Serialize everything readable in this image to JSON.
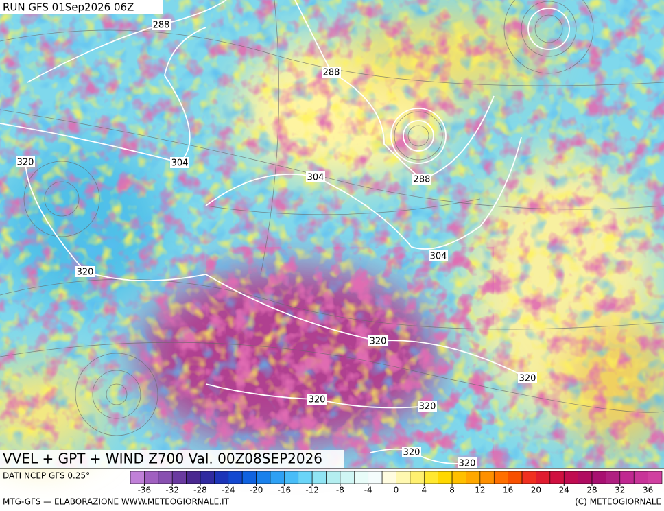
{
  "header": {
    "run": "RUN GFS 01Sep2026 06Z"
  },
  "map": {
    "title": "VVEL + GPT + WIND Z700 Val. 00Z08SEP2026",
    "contour_labels": [
      "288",
      "288",
      "288",
      "304",
      "304",
      "304",
      "320",
      "320",
      "320",
      "320",
      "320",
      "320",
      "320",
      "320"
    ]
  },
  "legend": {
    "source": "DATI NCEP GFS 0.25°",
    "colors": [
      "#c080d8",
      "#a060c0",
      "#8850b0",
      "#6a3aa0",
      "#4a2890",
      "#302aa0",
      "#1c34b8",
      "#1448d0",
      "#1062e0",
      "#1a80ec",
      "#2ea0f4",
      "#48bcf8",
      "#6ad4f8",
      "#90e4f4",
      "#b4eef0",
      "#d0f6f4",
      "#e8fcf8",
      "#f4fcfc",
      "#fffce0",
      "#fff8b0",
      "#fff070",
      "#ffe830",
      "#ffd800",
      "#ffc000",
      "#ffa800",
      "#ff9000",
      "#ff7000",
      "#f85000",
      "#f03020",
      "#e01c30",
      "#d01040",
      "#c00c50",
      "#b00c60",
      "#a81070",
      "#b02080",
      "#c02890",
      "#c83498",
      "#d040a0"
    ],
    "ticks": [
      -36,
      -32,
      -28,
      -24,
      -20,
      -16,
      -12,
      -8,
      -4,
      0,
      4,
      8,
      12,
      16,
      20,
      24,
      28,
      32,
      36
    ]
  },
  "footer": {
    "left": "MTG-GFS — ELABORAZIONE WWW.METEOGIORNALE.IT",
    "right": "(C) METEOGIORNALE"
  }
}
